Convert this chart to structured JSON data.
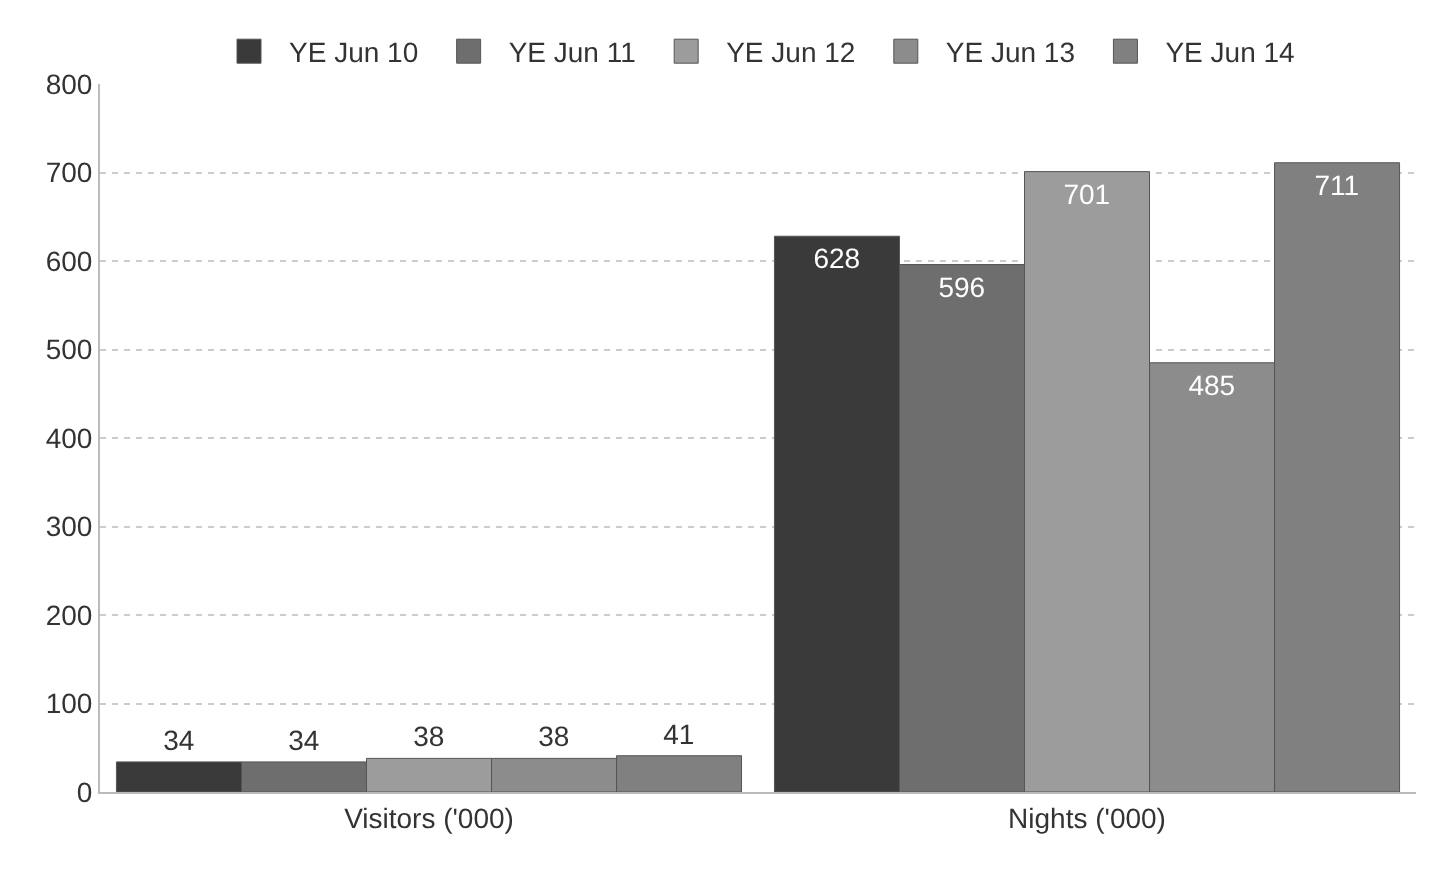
{
  "chart_data": {
    "type": "bar",
    "categories": [
      "Visitors ('000)",
      "Nights ('000)"
    ],
    "series": [
      {
        "name": "YE Jun 10",
        "color": "#3a3a3a",
        "values": [
          34,
          628
        ]
      },
      {
        "name": "YE Jun 11",
        "color": "#6e6e6e",
        "values": [
          34,
          596
        ]
      },
      {
        "name": "YE Jun 12",
        "color": "#9c9c9c",
        "values": [
          38,
          701
        ]
      },
      {
        "name": "YE Jun 13",
        "color": "#8c8c8c",
        "values": [
          38,
          485
        ]
      },
      {
        "name": "YE Jun 14",
        "color": "#808080",
        "values": [
          41,
          711
        ]
      }
    ],
    "ylim": [
      0,
      800
    ],
    "yticks": [
      0,
      100,
      200,
      300,
      400,
      500,
      600,
      700,
      800
    ],
    "grid": "y",
    "legend": "top",
    "data_labels": true
  }
}
